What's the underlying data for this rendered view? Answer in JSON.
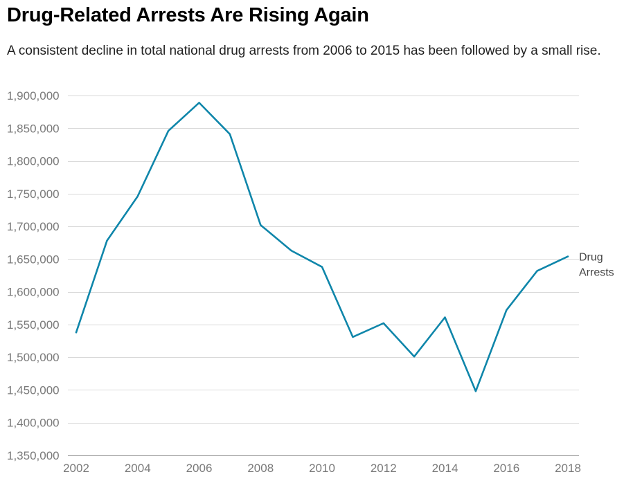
{
  "chart_data": {
    "type": "line",
    "title": "Drug-Related Arrests Are Rising Again",
    "subtitle": "A consistent decline in total national drug arrests from 2006 to 2015 has been followed by a small rise.",
    "xlabel": "",
    "ylabel": "",
    "x": [
      2002,
      2003,
      2004,
      2005,
      2006,
      2007,
      2008,
      2009,
      2010,
      2011,
      2012,
      2013,
      2014,
      2015,
      2016,
      2017,
      2018
    ],
    "series": [
      {
        "name_lines": [
          "Drug",
          "Arrests"
        ],
        "color": "#0f86aa",
        "values": [
          1538000,
          1678000,
          1746000,
          1846000,
          1889000,
          1841000,
          1702000,
          1663000,
          1638000,
          1531000,
          1552000,
          1501000,
          1561000,
          1448000,
          1572000,
          1632000,
          1654000
        ]
      }
    ],
    "ylim": [
      1350000,
      1900000
    ],
    "yticks": [
      1350000,
      1400000,
      1450000,
      1500000,
      1550000,
      1600000,
      1650000,
      1700000,
      1750000,
      1800000,
      1850000,
      1900000
    ],
    "ytick_labels": [
      "1,350,000",
      "1,400,000",
      "1,450,000",
      "1,500,000",
      "1,550,000",
      "1,600,000",
      "1,650,000",
      "1,700,000",
      "1,750,000",
      "1,800,000",
      "1,850,000",
      "1,900,000"
    ],
    "xlim": [
      2002,
      2018
    ],
    "xticks": [
      2002,
      2004,
      2006,
      2008,
      2010,
      2012,
      2014,
      2016,
      2018
    ],
    "xtick_labels": [
      "2002",
      "2004",
      "2006",
      "2008",
      "2010",
      "2012",
      "2014",
      "2016",
      "2018"
    ],
    "grid": "horizontal",
    "legend": "inline label at end of line",
    "colors": {
      "gridline": "#d9d9d9",
      "baseline": "#9a9a9a",
      "tick_label": "#7a7a7a"
    }
  }
}
